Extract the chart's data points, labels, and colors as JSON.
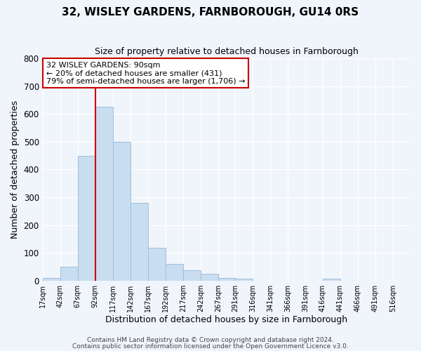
{
  "title": "32, WISLEY GARDENS, FARNBOROUGH, GU14 0RS",
  "subtitle": "Size of property relative to detached houses in Farnborough",
  "xlabel": "Distribution of detached houses by size in Farnborough",
  "ylabel": "Number of detached properties",
  "bar_color": "#c9ddf0",
  "bar_edge_color": "#a0bedd",
  "background_color": "#f0f4fb",
  "plot_bg_color": "#f0f4fb",
  "grid_color": "#ffffff",
  "vline_x": 92,
  "vline_color": "#cc0000",
  "bin_edges": [
    17,
    42,
    67,
    92,
    117,
    142,
    167,
    192,
    217,
    242,
    267,
    291,
    316,
    341,
    366,
    391,
    416,
    441,
    466,
    491,
    516
  ],
  "bin_counts": [
    10,
    50,
    450,
    625,
    500,
    280,
    118,
    60,
    38,
    25,
    10,
    7,
    0,
    0,
    0,
    0,
    8,
    0,
    0,
    0
  ],
  "xlim": [
    17,
    541
  ],
  "ylim": [
    0,
    800
  ],
  "yticks": [
    0,
    100,
    200,
    300,
    400,
    500,
    600,
    700,
    800
  ],
  "xtick_labels": [
    "17sqm",
    "42sqm",
    "67sqm",
    "92sqm",
    "117sqm",
    "142sqm",
    "167sqm",
    "192sqm",
    "217sqm",
    "242sqm",
    "267sqm",
    "291sqm",
    "316sqm",
    "341sqm",
    "366sqm",
    "391sqm",
    "416sqm",
    "441sqm",
    "466sqm",
    "491sqm",
    "516sqm"
  ],
  "annotation_text": "32 WISLEY GARDENS: 90sqm\n← 20% of detached houses are smaller (431)\n79% of semi-detached houses are larger (1,706) →",
  "annotation_box_color": "#ffffff",
  "annotation_box_edge_color": "#cc0000",
  "footer_line1": "Contains HM Land Registry data © Crown copyright and database right 2024.",
  "footer_line2": "Contains public sector information licensed under the Open Government Licence v3.0."
}
